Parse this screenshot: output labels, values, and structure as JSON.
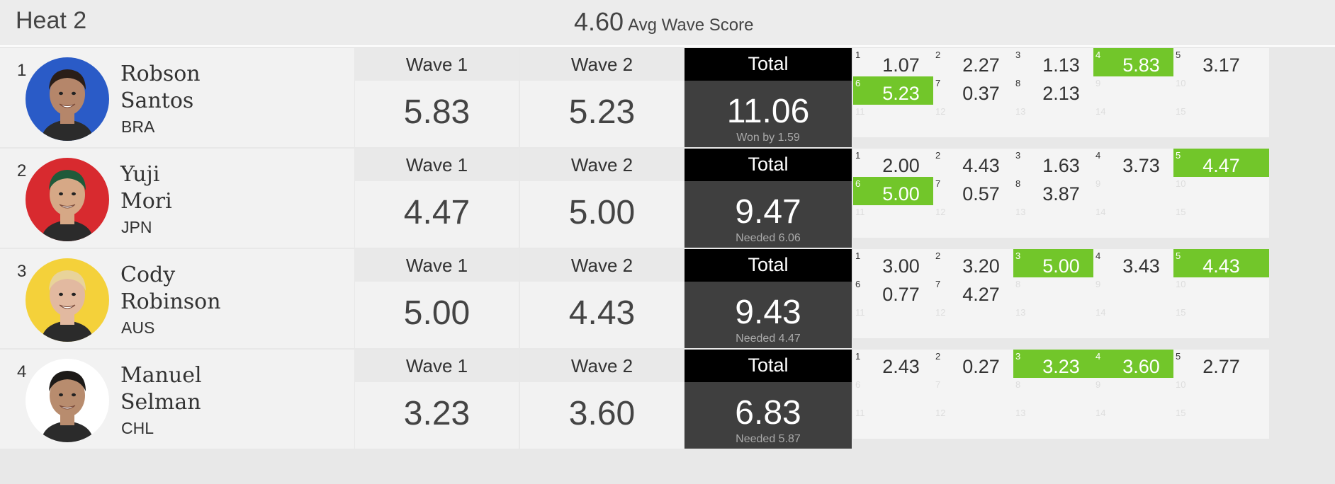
{
  "heat_title": "Heat 2",
  "avg_score": "4.60",
  "avg_label": "Avg Wave Score",
  "wave1_label": "Wave 1",
  "wave2_label": "Wave 2",
  "total_label": "Total",
  "colors": {
    "highlight": "#72c62a",
    "total_bg": "#3f3f3f",
    "total_header": "#000000"
  },
  "athletes": [
    {
      "rank": "1",
      "first": "Robson",
      "last": "Santos",
      "country": "BRA",
      "avatar_bg": "#2a5bc7",
      "skin": "#b5866a",
      "hair": "#2a1e18",
      "wave1": "5.83",
      "wave2": "5.23",
      "total": "11.06",
      "note": "Won by 1.59",
      "waves": [
        {
          "n": "1",
          "s": "1.07",
          "hi": false
        },
        {
          "n": "2",
          "s": "2.27",
          "hi": false
        },
        {
          "n": "3",
          "s": "1.13",
          "hi": false
        },
        {
          "n": "4",
          "s": "5.83",
          "hi": true
        },
        {
          "n": "5",
          "s": "3.17",
          "hi": false
        },
        {
          "n": "6",
          "s": "5.23",
          "hi": true
        },
        {
          "n": "7",
          "s": "0.37",
          "hi": false
        },
        {
          "n": "8",
          "s": "2.13",
          "hi": false
        },
        {
          "n": "9",
          "s": "",
          "hi": false
        },
        {
          "n": "10",
          "s": "",
          "hi": false
        },
        {
          "n": "11",
          "s": "",
          "hi": false
        },
        {
          "n": "12",
          "s": "",
          "hi": false
        },
        {
          "n": "13",
          "s": "",
          "hi": false
        },
        {
          "n": "14",
          "s": "",
          "hi": false
        },
        {
          "n": "15",
          "s": "",
          "hi": false
        }
      ]
    },
    {
      "rank": "2",
      "first": "Yuji",
      "last": "Mori",
      "country": "JPN",
      "avatar_bg": "#d82a2f",
      "skin": "#d6a886",
      "hair": "#1f5a3a",
      "wave1": "4.47",
      "wave2": "5.00",
      "total": "9.47",
      "note": "Needed 6.06",
      "waves": [
        {
          "n": "1",
          "s": "2.00",
          "hi": false
        },
        {
          "n": "2",
          "s": "4.43",
          "hi": false
        },
        {
          "n": "3",
          "s": "1.63",
          "hi": false
        },
        {
          "n": "4",
          "s": "3.73",
          "hi": false
        },
        {
          "n": "5",
          "s": "4.47",
          "hi": true
        },
        {
          "n": "6",
          "s": "5.00",
          "hi": true
        },
        {
          "n": "7",
          "s": "0.57",
          "hi": false
        },
        {
          "n": "8",
          "s": "3.87",
          "hi": false
        },
        {
          "n": "9",
          "s": "",
          "hi": false
        },
        {
          "n": "10",
          "s": "",
          "hi": false
        },
        {
          "n": "11",
          "s": "",
          "hi": false
        },
        {
          "n": "12",
          "s": "",
          "hi": false
        },
        {
          "n": "13",
          "s": "",
          "hi": false
        },
        {
          "n": "14",
          "s": "",
          "hi": false
        },
        {
          "n": "15",
          "s": "",
          "hi": false
        }
      ]
    },
    {
      "rank": "3",
      "first": "Cody",
      "last": "Robinson",
      "country": "AUS",
      "avatar_bg": "#f4d13a",
      "skin": "#e2b9a0",
      "hair": "#e8d39a",
      "wave1": "5.00",
      "wave2": "4.43",
      "total": "9.43",
      "note": "Needed 4.47",
      "waves": [
        {
          "n": "1",
          "s": "3.00",
          "hi": false
        },
        {
          "n": "2",
          "s": "3.20",
          "hi": false
        },
        {
          "n": "3",
          "s": "5.00",
          "hi": true
        },
        {
          "n": "4",
          "s": "3.43",
          "hi": false
        },
        {
          "n": "5",
          "s": "4.43",
          "hi": true
        },
        {
          "n": "6",
          "s": "0.77",
          "hi": false
        },
        {
          "n": "7",
          "s": "4.27",
          "hi": false
        },
        {
          "n": "8",
          "s": "",
          "hi": false
        },
        {
          "n": "9",
          "s": "",
          "hi": false
        },
        {
          "n": "10",
          "s": "",
          "hi": false
        },
        {
          "n": "11",
          "s": "",
          "hi": false
        },
        {
          "n": "12",
          "s": "",
          "hi": false
        },
        {
          "n": "13",
          "s": "",
          "hi": false
        },
        {
          "n": "14",
          "s": "",
          "hi": false
        },
        {
          "n": "15",
          "s": "",
          "hi": false
        }
      ]
    },
    {
      "rank": "4",
      "first": "Manuel",
      "last": "Selman",
      "country": "CHL",
      "avatar_bg": "#ffffff",
      "skin": "#b88c6e",
      "hair": "#1d1a18",
      "wave1": "3.23",
      "wave2": "3.60",
      "total": "6.83",
      "note": "Needed 5.87",
      "waves": [
        {
          "n": "1",
          "s": "2.43",
          "hi": false
        },
        {
          "n": "2",
          "s": "0.27",
          "hi": false
        },
        {
          "n": "3",
          "s": "3.23",
          "hi": true
        },
        {
          "n": "4",
          "s": "3.60",
          "hi": true
        },
        {
          "n": "5",
          "s": "2.77",
          "hi": false
        },
        {
          "n": "6",
          "s": "",
          "hi": false
        },
        {
          "n": "7",
          "s": "",
          "hi": false
        },
        {
          "n": "8",
          "s": "",
          "hi": false
        },
        {
          "n": "9",
          "s": "",
          "hi": false
        },
        {
          "n": "10",
          "s": "",
          "hi": false
        },
        {
          "n": "11",
          "s": "",
          "hi": false
        },
        {
          "n": "12",
          "s": "",
          "hi": false
        },
        {
          "n": "13",
          "s": "",
          "hi": false
        },
        {
          "n": "14",
          "s": "",
          "hi": false
        },
        {
          "n": "15",
          "s": "",
          "hi": false
        }
      ]
    }
  ]
}
